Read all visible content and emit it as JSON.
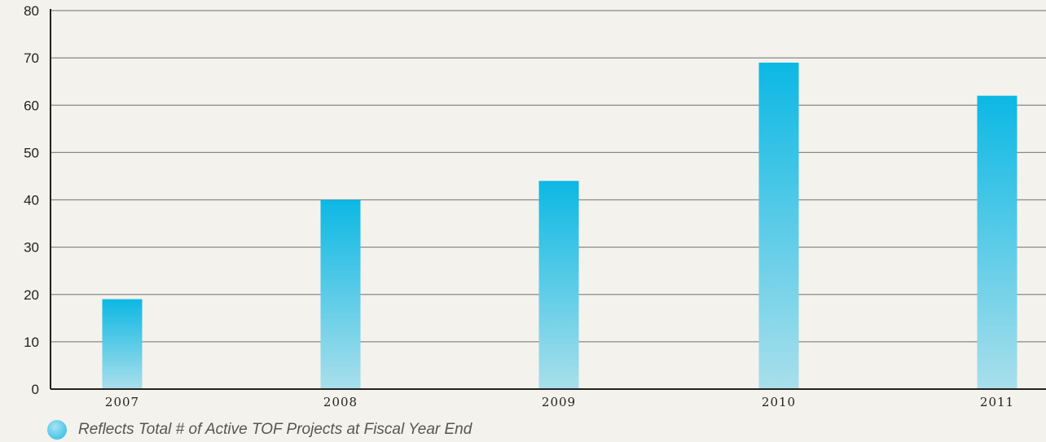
{
  "chart_data": {
    "type": "bar",
    "categories": [
      "2007",
      "2008",
      "2009",
      "2010",
      "2011"
    ],
    "values": [
      19,
      40,
      44,
      69,
      62
    ],
    "title": "",
    "xlabel": "",
    "ylabel": "",
    "ylim": [
      0,
      80
    ],
    "yticks": [
      "0",
      "10",
      "20",
      "30",
      "40",
      "50",
      "60",
      "70",
      "80"
    ],
    "grid": true,
    "legend": {
      "placement": "bottom-left",
      "entries": [
        "Reflects Total # of Active TOF Projects at Fiscal Year End"
      ]
    }
  },
  "colors": {
    "background": "#f4f2ec",
    "bar_top": "#0cb8e4",
    "bar_bottom": "#a9dfeb",
    "gridline": "#888888",
    "axis": "#222222"
  }
}
